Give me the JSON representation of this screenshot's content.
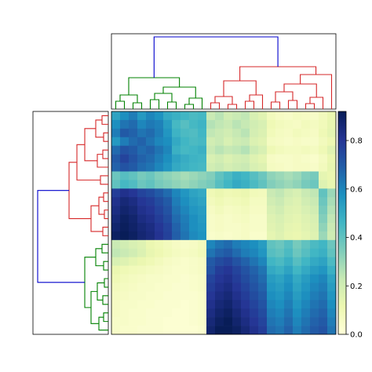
{
  "colors": {
    "left_cluster_top": "#d62728",
    "left_cluster_bottom": "#008000",
    "top_cluster_left": "#008000",
    "top_cluster_right": "#d62728",
    "root_link": "#0000cc",
    "cmap_low": "#ffffd9",
    "cmap_mid": "#41b6c4",
    "cmap_high": "#081d58"
  },
  "chart_data": {
    "type": "heatmap",
    "title": "",
    "xlabel": "",
    "ylabel": "",
    "colorbar": {
      "vmin": 0.0,
      "vmax": 0.92,
      "ticks": [
        0.0,
        0.2,
        0.4,
        0.6,
        0.8
      ],
      "tick_labels": [
        "0.0",
        "0.2",
        "0.4",
        "0.6",
        "0.8"
      ],
      "colormap": "YlGnBu"
    },
    "grid": false,
    "rows": 26,
    "cols": 26,
    "row_clusters": [
      {
        "name": "red",
        "size": 14
      },
      {
        "name": "green",
        "size": 12
      }
    ],
    "col_clusters": [
      {
        "name": "green",
        "size": 11
      },
      {
        "name": "red",
        "size": 15
      }
    ],
    "block_means": {
      "rows_0_6__cols_0_10": 0.6,
      "rows_0_6__cols_11_25": 0.2,
      "rows_7_8__cols_0_25": 0.4,
      "rows_9_14__cols_0_10": 0.82,
      "rows_9_14__cols_11_25": 0.12,
      "rows_15_25__cols_0_10": 0.1,
      "rows_15_25__cols_11_17": 0.78,
      "rows_15_25__cols_18_25": 0.55
    },
    "values": [
      [
        0.52,
        0.58,
        0.62,
        0.55,
        0.6,
        0.57,
        0.5,
        0.48,
        0.46,
        0.44,
        0.45,
        0.22,
        0.25,
        0.2,
        0.22,
        0.24,
        0.18,
        0.15,
        0.08,
        0.06,
        0.05,
        0.07,
        0.06,
        0.05,
        0.08,
        0.12
      ],
      [
        0.58,
        0.64,
        0.66,
        0.6,
        0.63,
        0.61,
        0.54,
        0.45,
        0.42,
        0.45,
        0.47,
        0.26,
        0.24,
        0.22,
        0.25,
        0.23,
        0.2,
        0.18,
        0.1,
        0.08,
        0.07,
        0.06,
        0.08,
        0.07,
        0.09,
        0.13
      ],
      [
        0.62,
        0.7,
        0.68,
        0.64,
        0.66,
        0.62,
        0.56,
        0.47,
        0.44,
        0.43,
        0.46,
        0.24,
        0.22,
        0.2,
        0.23,
        0.25,
        0.19,
        0.17,
        0.09,
        0.07,
        0.06,
        0.08,
        0.07,
        0.06,
        0.1,
        0.14
      ],
      [
        0.55,
        0.62,
        0.66,
        0.68,
        0.64,
        0.6,
        0.58,
        0.5,
        0.46,
        0.44,
        0.45,
        0.2,
        0.22,
        0.18,
        0.21,
        0.22,
        0.17,
        0.15,
        0.07,
        0.06,
        0.05,
        0.06,
        0.05,
        0.05,
        0.08,
        0.11
      ],
      [
        0.66,
        0.72,
        0.7,
        0.66,
        0.68,
        0.64,
        0.6,
        0.48,
        0.45,
        0.46,
        0.48,
        0.22,
        0.25,
        0.23,
        0.24,
        0.26,
        0.21,
        0.18,
        0.1,
        0.08,
        0.07,
        0.07,
        0.08,
        0.07,
        0.1,
        0.15
      ],
      [
        0.7,
        0.76,
        0.72,
        0.68,
        0.66,
        0.62,
        0.58,
        0.52,
        0.49,
        0.47,
        0.46,
        0.18,
        0.2,
        0.17,
        0.19,
        0.2,
        0.16,
        0.14,
        0.06,
        0.05,
        0.05,
        0.06,
        0.05,
        0.04,
        0.07,
        0.12
      ],
      [
        0.68,
        0.72,
        0.7,
        0.66,
        0.64,
        0.6,
        0.56,
        0.5,
        0.48,
        0.46,
        0.45,
        0.2,
        0.22,
        0.19,
        0.21,
        0.22,
        0.18,
        0.16,
        0.07,
        0.06,
        0.05,
        0.06,
        0.06,
        0.05,
        0.08,
        0.13
      ],
      [
        0.38,
        0.42,
        0.4,
        0.36,
        0.38,
        0.34,
        0.32,
        0.3,
        0.28,
        0.3,
        0.32,
        0.34,
        0.4,
        0.44,
        0.48,
        0.46,
        0.42,
        0.38,
        0.32,
        0.3,
        0.28,
        0.3,
        0.34,
        0.36,
        0.14,
        0.12
      ],
      [
        0.4,
        0.45,
        0.43,
        0.38,
        0.4,
        0.36,
        0.34,
        0.32,
        0.3,
        0.32,
        0.34,
        0.36,
        0.42,
        0.46,
        0.5,
        0.48,
        0.44,
        0.4,
        0.34,
        0.32,
        0.3,
        0.32,
        0.36,
        0.38,
        0.16,
        0.13
      ],
      [
        0.78,
        0.82,
        0.8,
        0.76,
        0.74,
        0.7,
        0.66,
        0.6,
        0.56,
        0.52,
        0.5,
        0.1,
        0.12,
        0.1,
        0.11,
        0.12,
        0.09,
        0.08,
        0.22,
        0.24,
        0.2,
        0.18,
        0.22,
        0.24,
        0.4,
        0.3
      ],
      [
        0.82,
        0.86,
        0.84,
        0.8,
        0.78,
        0.74,
        0.7,
        0.62,
        0.58,
        0.54,
        0.52,
        0.08,
        0.1,
        0.08,
        0.09,
        0.1,
        0.07,
        0.07,
        0.2,
        0.22,
        0.18,
        0.16,
        0.2,
        0.22,
        0.38,
        0.28
      ],
      [
        0.84,
        0.88,
        0.86,
        0.82,
        0.8,
        0.76,
        0.72,
        0.64,
        0.6,
        0.56,
        0.54,
        0.06,
        0.08,
        0.06,
        0.07,
        0.08,
        0.06,
        0.06,
        0.18,
        0.2,
        0.16,
        0.15,
        0.18,
        0.2,
        0.36,
        0.26
      ],
      [
        0.86,
        0.9,
        0.88,
        0.84,
        0.82,
        0.78,
        0.74,
        0.66,
        0.62,
        0.58,
        0.55,
        0.05,
        0.06,
        0.05,
        0.06,
        0.07,
        0.05,
        0.05,
        0.16,
        0.18,
        0.15,
        0.14,
        0.16,
        0.18,
        0.34,
        0.24
      ],
      [
        0.88,
        0.91,
        0.89,
        0.86,
        0.84,
        0.8,
        0.76,
        0.68,
        0.63,
        0.58,
        0.56,
        0.05,
        0.06,
        0.05,
        0.05,
        0.06,
        0.05,
        0.05,
        0.15,
        0.17,
        0.14,
        0.13,
        0.15,
        0.17,
        0.32,
        0.22
      ],
      [
        0.9,
        0.92,
        0.9,
        0.87,
        0.85,
        0.81,
        0.77,
        0.69,
        0.64,
        0.59,
        0.57,
        0.04,
        0.05,
        0.04,
        0.05,
        0.06,
        0.04,
        0.04,
        0.14,
        0.16,
        0.13,
        0.12,
        0.14,
        0.16,
        0.3,
        0.21
      ],
      [
        0.22,
        0.2,
        0.18,
        0.16,
        0.12,
        0.1,
        0.08,
        0.06,
        0.05,
        0.06,
        0.08,
        0.6,
        0.64,
        0.66,
        0.62,
        0.6,
        0.58,
        0.54,
        0.4,
        0.38,
        0.42,
        0.36,
        0.4,
        0.44,
        0.46,
        0.38
      ],
      [
        0.24,
        0.22,
        0.2,
        0.17,
        0.13,
        0.11,
        0.09,
        0.07,
        0.06,
        0.07,
        0.09,
        0.64,
        0.68,
        0.7,
        0.66,
        0.62,
        0.6,
        0.56,
        0.42,
        0.4,
        0.44,
        0.38,
        0.42,
        0.46,
        0.48,
        0.4
      ],
      [
        0.18,
        0.16,
        0.14,
        0.12,
        0.1,
        0.08,
        0.06,
        0.05,
        0.04,
        0.05,
        0.06,
        0.7,
        0.74,
        0.76,
        0.72,
        0.68,
        0.64,
        0.6,
        0.46,
        0.44,
        0.48,
        0.42,
        0.46,
        0.5,
        0.52,
        0.44
      ],
      [
        0.12,
        0.1,
        0.09,
        0.08,
        0.07,
        0.06,
        0.05,
        0.04,
        0.04,
        0.05,
        0.06,
        0.72,
        0.78,
        0.8,
        0.76,
        0.72,
        0.68,
        0.64,
        0.5,
        0.48,
        0.52,
        0.46,
        0.5,
        0.54,
        0.56,
        0.48
      ],
      [
        0.1,
        0.08,
        0.07,
        0.06,
        0.05,
        0.05,
        0.04,
        0.04,
        0.03,
        0.04,
        0.05,
        0.76,
        0.8,
        0.82,
        0.78,
        0.74,
        0.7,
        0.66,
        0.54,
        0.52,
        0.56,
        0.5,
        0.54,
        0.58,
        0.6,
        0.52
      ],
      [
        0.08,
        0.07,
        0.06,
        0.05,
        0.05,
        0.04,
        0.04,
        0.03,
        0.03,
        0.04,
        0.05,
        0.78,
        0.82,
        0.84,
        0.8,
        0.76,
        0.72,
        0.68,
        0.56,
        0.54,
        0.58,
        0.52,
        0.56,
        0.6,
        0.62,
        0.54
      ],
      [
        0.07,
        0.06,
        0.05,
        0.05,
        0.04,
        0.04,
        0.03,
        0.03,
        0.03,
        0.03,
        0.04,
        0.8,
        0.84,
        0.86,
        0.82,
        0.78,
        0.74,
        0.7,
        0.58,
        0.56,
        0.6,
        0.54,
        0.58,
        0.62,
        0.64,
        0.56
      ],
      [
        0.06,
        0.05,
        0.05,
        0.04,
        0.04,
        0.03,
        0.03,
        0.03,
        0.02,
        0.03,
        0.04,
        0.82,
        0.86,
        0.88,
        0.84,
        0.8,
        0.76,
        0.72,
        0.6,
        0.58,
        0.62,
        0.56,
        0.6,
        0.64,
        0.66,
        0.58
      ],
      [
        0.06,
        0.05,
        0.04,
        0.04,
        0.03,
        0.03,
        0.03,
        0.02,
        0.02,
        0.03,
        0.04,
        0.84,
        0.88,
        0.9,
        0.86,
        0.82,
        0.78,
        0.74,
        0.62,
        0.6,
        0.64,
        0.58,
        0.62,
        0.66,
        0.68,
        0.6
      ],
      [
        0.05,
        0.05,
        0.04,
        0.04,
        0.03,
        0.03,
        0.02,
        0.02,
        0.02,
        0.03,
        0.04,
        0.86,
        0.9,
        0.92,
        0.88,
        0.84,
        0.8,
        0.76,
        0.64,
        0.62,
        0.66,
        0.6,
        0.64,
        0.68,
        0.7,
        0.62
      ],
      [
        0.05,
        0.04,
        0.04,
        0.03,
        0.03,
        0.03,
        0.02,
        0.02,
        0.02,
        0.02,
        0.03,
        0.88,
        0.92,
        0.92,
        0.9,
        0.86,
        0.82,
        0.78,
        0.66,
        0.64,
        0.68,
        0.62,
        0.66,
        0.7,
        0.72,
        0.64
      ]
    ]
  }
}
